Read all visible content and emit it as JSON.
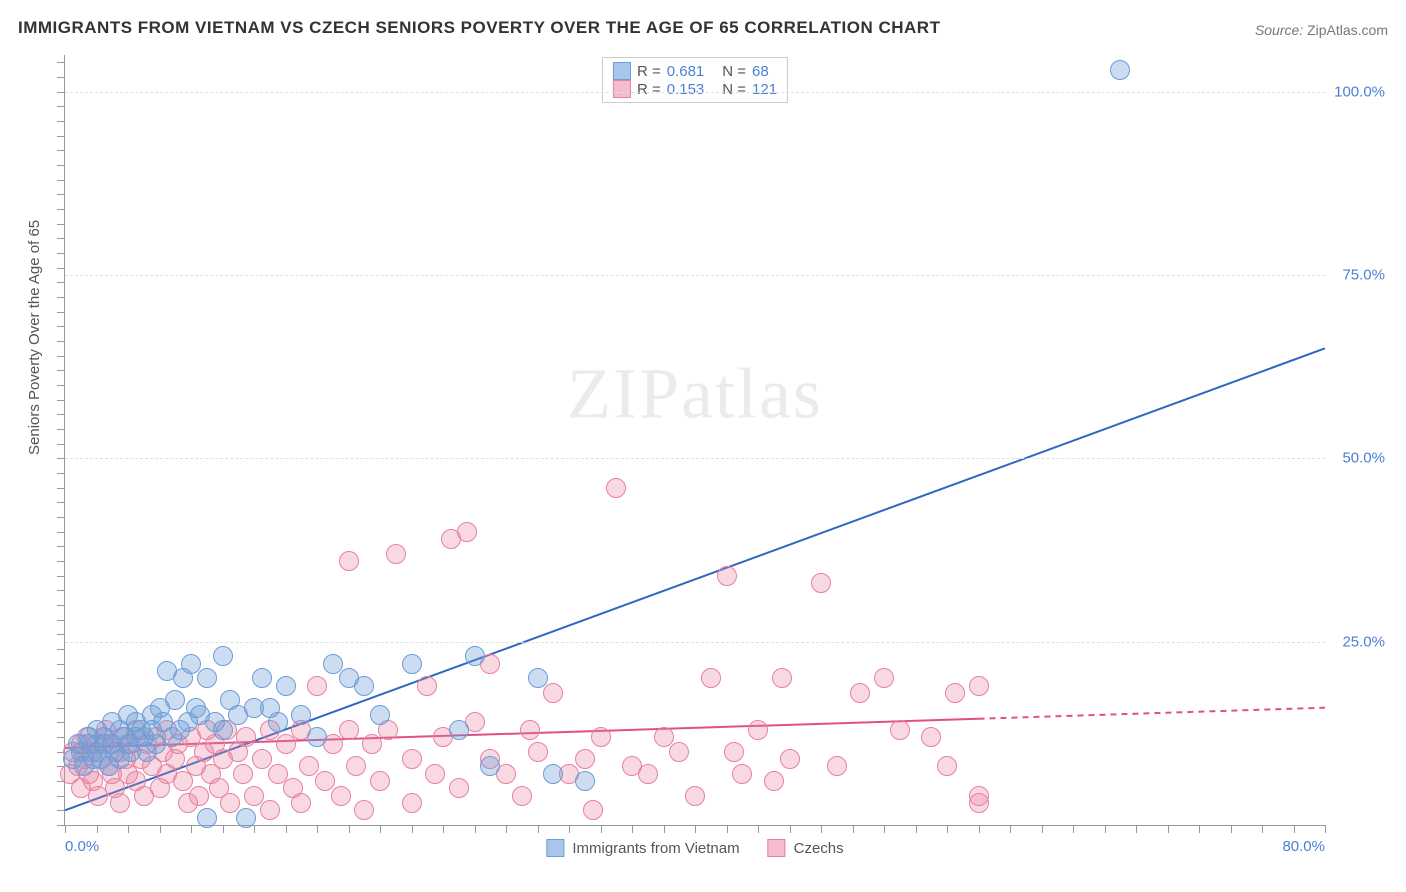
{
  "title": "IMMIGRANTS FROM VIETNAM VS CZECH SENIORS POVERTY OVER THE AGE OF 65 CORRELATION CHART",
  "source_label": "Source:",
  "source_value": "ZipAtlas.com",
  "ylabel": "Seniors Poverty Over the Age of 65",
  "watermark": "ZIPatlas",
  "chart": {
    "type": "scatter-with-regression",
    "xlim": [
      0,
      80
    ],
    "ylim": [
      0,
      105
    ],
    "xtick_labels": [
      "0.0%",
      "80.0%"
    ],
    "ytick_positions": [
      25,
      50,
      75,
      100
    ],
    "ytick_labels": [
      "25.0%",
      "50.0%",
      "75.0%",
      "100.0%"
    ],
    "xtick_minor_step": 2,
    "ytick_minor_step": 2,
    "background_color": "#ffffff",
    "grid_color": "#e0e0e0",
    "axis_color": "#999999",
    "label_color": "#4a7fd6",
    "point_radius": 9,
    "series": [
      {
        "name": "Immigrants from Vietnam",
        "color_fill": "rgba(108,157,216,0.35)",
        "color_stroke": "#6c9dd8",
        "R": "0.681",
        "N": "68",
        "regression": {
          "x1": 0,
          "y1": 2,
          "x2": 80,
          "y2": 65,
          "solid_until_x": 80,
          "line_color": "#2e68c4",
          "line_width": 2
        },
        "points": [
          [
            0.5,
            9
          ],
          [
            0.8,
            11
          ],
          [
            1.0,
            10
          ],
          [
            1.2,
            8
          ],
          [
            1.5,
            12
          ],
          [
            1.5,
            11
          ],
          [
            1.8,
            9
          ],
          [
            2.0,
            13
          ],
          [
            2.0,
            10
          ],
          [
            2.3,
            9
          ],
          [
            2.5,
            12
          ],
          [
            2.5,
            11
          ],
          [
            2.8,
            8
          ],
          [
            3.0,
            14
          ],
          [
            3.0,
            11
          ],
          [
            3.2,
            10
          ],
          [
            3.5,
            13
          ],
          [
            3.5,
            9
          ],
          [
            3.8,
            12
          ],
          [
            4.0,
            15
          ],
          [
            4.0,
            11
          ],
          [
            4.2,
            10
          ],
          [
            4.5,
            14
          ],
          [
            4.5,
            12
          ],
          [
            4.8,
            13
          ],
          [
            5.0,
            12
          ],
          [
            5.2,
            10
          ],
          [
            5.5,
            15
          ],
          [
            5.5,
            13
          ],
          [
            5.8,
            11
          ],
          [
            6.0,
            16
          ],
          [
            6.2,
            14
          ],
          [
            6.5,
            21
          ],
          [
            6.8,
            12
          ],
          [
            7.0,
            17
          ],
          [
            7.3,
            13
          ],
          [
            7.5,
            20
          ],
          [
            7.8,
            14
          ],
          [
            8.0,
            22
          ],
          [
            8.3,
            16
          ],
          [
            8.6,
            15
          ],
          [
            9.0,
            1
          ],
          [
            9.0,
            20
          ],
          [
            9.5,
            14
          ],
          [
            10.0,
            23
          ],
          [
            10.0,
            13
          ],
          [
            10.5,
            17
          ],
          [
            11.0,
            15
          ],
          [
            11.5,
            1
          ],
          [
            12.0,
            16
          ],
          [
            12.5,
            20
          ],
          [
            13.0,
            16
          ],
          [
            13.5,
            14
          ],
          [
            14.0,
            19
          ],
          [
            15.0,
            15
          ],
          [
            16.0,
            12
          ],
          [
            17.0,
            22
          ],
          [
            18.0,
            20
          ],
          [
            19.0,
            19
          ],
          [
            20.0,
            15
          ],
          [
            22.0,
            22
          ],
          [
            25.0,
            13
          ],
          [
            26.0,
            23
          ],
          [
            27.0,
            8
          ],
          [
            30.0,
            20
          ],
          [
            31.0,
            7
          ],
          [
            33.0,
            6
          ],
          [
            67.0,
            103
          ]
        ]
      },
      {
        "name": "Czechs",
        "color_fill": "rgba(232,128,160,0.30)",
        "color_stroke": "#e880a0",
        "R": "0.153",
        "N": "121",
        "regression": {
          "x1": 0,
          "y1": 10.5,
          "x2": 80,
          "y2": 16,
          "solid_until_x": 58,
          "line_color": "#e05080",
          "line_width": 2
        },
        "points": [
          [
            0.3,
            7
          ],
          [
            0.5,
            10
          ],
          [
            0.8,
            8
          ],
          [
            1.0,
            11
          ],
          [
            1.0,
            5
          ],
          [
            1.2,
            9
          ],
          [
            1.4,
            12
          ],
          [
            1.5,
            7
          ],
          [
            1.7,
            10
          ],
          [
            1.8,
            6
          ],
          [
            2.0,
            11
          ],
          [
            2.1,
            4
          ],
          [
            2.3,
            9
          ],
          [
            2.5,
            12
          ],
          [
            2.6,
            13
          ],
          [
            2.8,
            8
          ],
          [
            3.0,
            7
          ],
          [
            3.0,
            11
          ],
          [
            3.2,
            5
          ],
          [
            3.5,
            10
          ],
          [
            3.5,
            3
          ],
          [
            3.7,
            12
          ],
          [
            3.9,
            9
          ],
          [
            4.0,
            7
          ],
          [
            4.2,
            11
          ],
          [
            4.5,
            6
          ],
          [
            4.5,
            13
          ],
          [
            4.8,
            9
          ],
          [
            5.0,
            4
          ],
          [
            5.2,
            11
          ],
          [
            5.5,
            8
          ],
          [
            5.8,
            12
          ],
          [
            6.0,
            5
          ],
          [
            6.2,
            10
          ],
          [
            6.5,
            7
          ],
          [
            6.5,
            13
          ],
          [
            7.0,
            9
          ],
          [
            7.2,
            11
          ],
          [
            7.5,
            6
          ],
          [
            7.8,
            3
          ],
          [
            8.0,
            12
          ],
          [
            8.3,
            8
          ],
          [
            8.5,
            4
          ],
          [
            8.8,
            10
          ],
          [
            9.0,
            13
          ],
          [
            9.3,
            7
          ],
          [
            9.5,
            11
          ],
          [
            9.8,
            5
          ],
          [
            10.0,
            9
          ],
          [
            10.3,
            13
          ],
          [
            10.5,
            3
          ],
          [
            11.0,
            10
          ],
          [
            11.3,
            7
          ],
          [
            11.5,
            12
          ],
          [
            12.0,
            4
          ],
          [
            12.5,
            9
          ],
          [
            13.0,
            13
          ],
          [
            13.0,
            2
          ],
          [
            13.5,
            7
          ],
          [
            14.0,
            11
          ],
          [
            14.5,
            5
          ],
          [
            15.0,
            13
          ],
          [
            15.0,
            3
          ],
          [
            15.5,
            8
          ],
          [
            16.0,
            19
          ],
          [
            16.5,
            6
          ],
          [
            17.0,
            11
          ],
          [
            17.5,
            4
          ],
          [
            18.0,
            13
          ],
          [
            18.0,
            36
          ],
          [
            18.5,
            8
          ],
          [
            19.0,
            2
          ],
          [
            19.5,
            11
          ],
          [
            20.0,
            6
          ],
          [
            20.5,
            13
          ],
          [
            21.0,
            37
          ],
          [
            22.0,
            9
          ],
          [
            22.0,
            3
          ],
          [
            23.0,
            19
          ],
          [
            23.5,
            7
          ],
          [
            24.0,
            12
          ],
          [
            24.5,
            39
          ],
          [
            25.0,
            5
          ],
          [
            25.5,
            40
          ],
          [
            26.0,
            14
          ],
          [
            27.0,
            9
          ],
          [
            27.0,
            22
          ],
          [
            28.0,
            7
          ],
          [
            29.0,
            4
          ],
          [
            29.5,
            13
          ],
          [
            30.0,
            10
          ],
          [
            31.0,
            18
          ],
          [
            32.0,
            7
          ],
          [
            33.0,
            9
          ],
          [
            33.5,
            2
          ],
          [
            34.0,
            12
          ],
          [
            35.0,
            46
          ],
          [
            36.0,
            8
          ],
          [
            37.0,
            7
          ],
          [
            38.0,
            12
          ],
          [
            39.0,
            10
          ],
          [
            40.0,
            4
          ],
          [
            41.0,
            20
          ],
          [
            42.0,
            34
          ],
          [
            42.5,
            10
          ],
          [
            43.0,
            7
          ],
          [
            44.0,
            13
          ],
          [
            45.0,
            6
          ],
          [
            45.5,
            20
          ],
          [
            46.0,
            9
          ],
          [
            48.0,
            33
          ],
          [
            49.0,
            8
          ],
          [
            50.5,
            18
          ],
          [
            52.0,
            20
          ],
          [
            53.0,
            13
          ],
          [
            55.0,
            12
          ],
          [
            56.0,
            8
          ],
          [
            56.5,
            18
          ],
          [
            58.0,
            4
          ],
          [
            58.0,
            19
          ],
          [
            58.0,
            3
          ]
        ]
      }
    ]
  },
  "legend_bottom": [
    {
      "label": "Immigrants from Vietnam",
      "fill": "#a9c6ea",
      "stroke": "#6c9dd8"
    },
    {
      "label": "Czechs",
      "fill": "#f4bcd0",
      "stroke": "#e880a0"
    }
  ]
}
